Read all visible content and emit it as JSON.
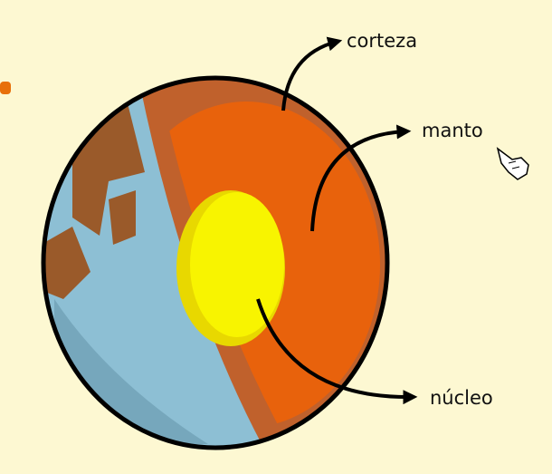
{
  "labels": {
    "crust": "corteza",
    "mantle": "manto",
    "core": "núcleo"
  }
}
